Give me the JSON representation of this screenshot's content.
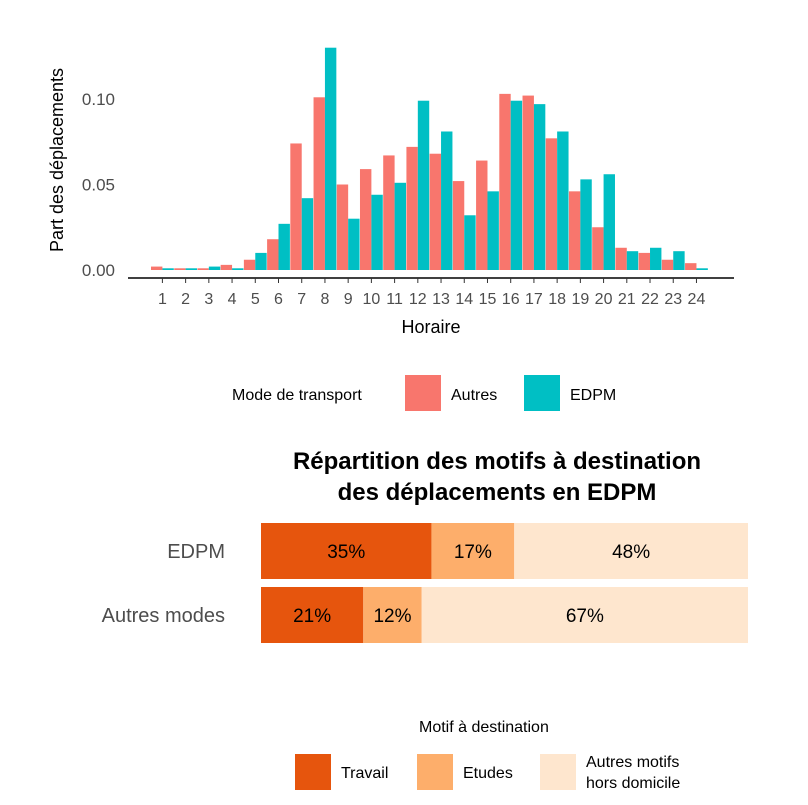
{
  "chart_data": [
    {
      "type": "bar",
      "title": "",
      "xlabel": "Horaire",
      "ylabel": "Part des déplacements",
      "ylim": [
        0,
        0.13
      ],
      "yticks": [
        "0.00",
        "0.05",
        "0.10"
      ],
      "ytick_values": [
        0,
        0.05,
        0.1
      ],
      "categories": [
        "1",
        "2",
        "3",
        "4",
        "5",
        "6",
        "7",
        "8",
        "9",
        "10",
        "11",
        "12",
        "13",
        "14",
        "15",
        "16",
        "17",
        "18",
        "19",
        "20",
        "21",
        "22",
        "23",
        "24"
      ],
      "series": [
        {
          "name": "Autres",
          "color": "#F8766D",
          "values": [
            0.002,
            0.001,
            0.001,
            0.003,
            0.006,
            0.018,
            0.074,
            0.101,
            0.05,
            0.059,
            0.067,
            0.072,
            0.068,
            0.052,
            0.064,
            0.103,
            0.102,
            0.077,
            0.046,
            0.025,
            0.013,
            0.01,
            0.006,
            0.004
          ]
        },
        {
          "name": "EDPM",
          "color": "#00BFC4",
          "values": [
            0.001,
            0.001,
            0.002,
            0.001,
            0.01,
            0.027,
            0.042,
            0.13,
            0.03,
            0.044,
            0.051,
            0.099,
            0.081,
            0.032,
            0.046,
            0.099,
            0.097,
            0.081,
            0.053,
            0.056,
            0.011,
            0.013,
            0.011,
            0.001
          ]
        }
      ],
      "grid": false,
      "legend": {
        "title": "Mode de transport",
        "placement": "bottom"
      }
    },
    {
      "type": "bar",
      "orientation": "horizontal-stacked",
      "title": "Répartition des motifs à destination des déplacements en EDPM",
      "title_lines": [
        "Répartition des motifs à destination",
        "des déplacements en EDPM"
      ],
      "categories": [
        "EDPM",
        "Autres modes"
      ],
      "series": [
        {
          "name": "Travail",
          "color": "#E6550D",
          "values": [
            35,
            21
          ],
          "labels": [
            "35%",
            "21%"
          ]
        },
        {
          "name": "Etudes",
          "color": "#FDAE6B",
          "values": [
            17,
            12
          ],
          "labels": [
            "17%",
            "12%"
          ]
        },
        {
          "name": "Autres motifs hors domicile",
          "name_lines": [
            "Autres motifs",
            "hors domicile"
          ],
          "color": "#FEE6CE",
          "values": [
            48,
            67
          ],
          "labels": [
            "48%",
            "67%"
          ]
        }
      ],
      "legend": {
        "title": "Motif à destination",
        "placement": "bottom"
      }
    }
  ]
}
